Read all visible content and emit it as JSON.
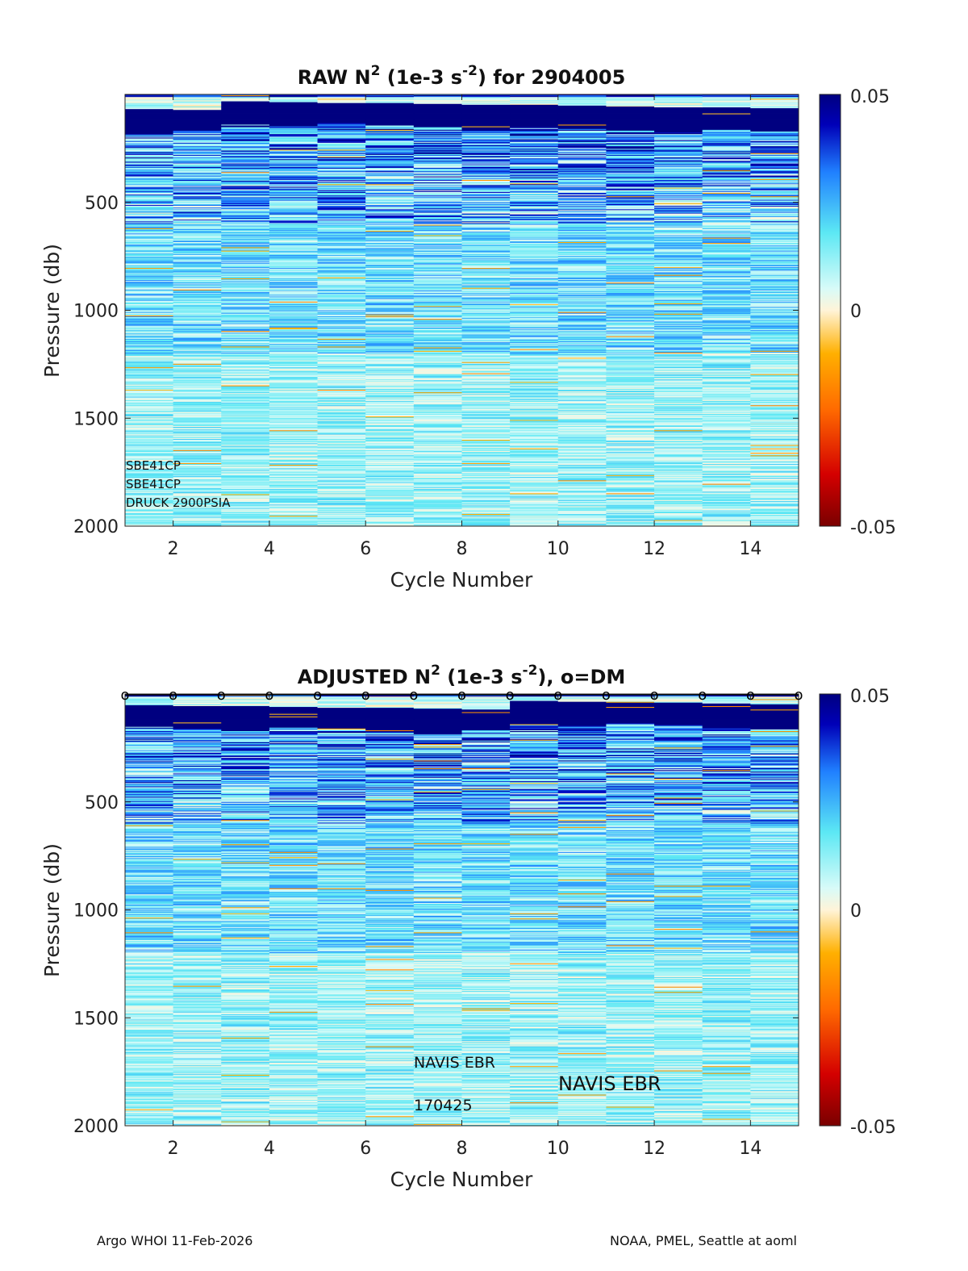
{
  "colors": {
    "cmap_stops": [
      "#7a0000",
      "#d40000",
      "#ff6a00",
      "#ffb000",
      "#fff4d8",
      "#d8fbf8",
      "#5ce8f4",
      "#2080ff",
      "#0000b8",
      "#000080"
    ]
  },
  "footer": {
    "left": "Argo WHOI 11-Feb-2026",
    "right": "NOAA, PMEL, Seattle at aoml"
  },
  "chart_data": [
    {
      "type": "heatmap",
      "title_main": "RAW N",
      "title_sup1": "2",
      "title_mid": " (1e-3 s",
      "title_sup2": "-2",
      "title_end": ") for 2904005",
      "xlabel": "Cycle Number",
      "ylabel": "Pressure (db)",
      "xlim": [
        1,
        15
      ],
      "ylim": [
        2000,
        0
      ],
      "xticks": [
        "2",
        "4",
        "6",
        "8",
        "10",
        "12",
        "14"
      ],
      "yticks": [
        "500",
        "1000",
        "1500",
        "2000"
      ],
      "cycles": [
        1,
        2,
        3,
        4,
        5,
        6,
        7,
        8,
        9,
        10,
        11,
        12,
        13,
        14
      ],
      "clim": [
        -0.05,
        0.05
      ],
      "colorbar_ticks": [
        "0.05",
        "0",
        "-0.05"
      ],
      "annotations": [
        "SBE41CP",
        "SBE41CP",
        "DRUCK 2900PSIA"
      ]
    },
    {
      "type": "heatmap",
      "title_main": "ADJUSTED N",
      "title_sup1": "2",
      "title_mid": " (1e-3 s",
      "title_sup2": "-2",
      "title_end": "), o=DM",
      "xlabel": "Cycle Number",
      "ylabel": "Pressure (db)",
      "xlim": [
        1,
        15
      ],
      "ylim": [
        2000,
        0
      ],
      "xticks": [
        "2",
        "4",
        "6",
        "8",
        "10",
        "12",
        "14"
      ],
      "yticks": [
        "500",
        "1000",
        "1500",
        "2000"
      ],
      "cycles": [
        1,
        2,
        3,
        4,
        5,
        6,
        7,
        8,
        9,
        10,
        11,
        12,
        13,
        14
      ],
      "clim": [
        -0.05,
        0.05
      ],
      "colorbar_ticks": [
        "0.05",
        "0",
        "-0.05"
      ],
      "dm_marker": "o",
      "dm_cycles": [
        1,
        2,
        3,
        4,
        5,
        6,
        7,
        8,
        9,
        10,
        11,
        12,
        13,
        14,
        15
      ],
      "annotations": [
        "NAVIS EBR",
        "170425",
        "NAVIS EBR"
      ]
    }
  ]
}
